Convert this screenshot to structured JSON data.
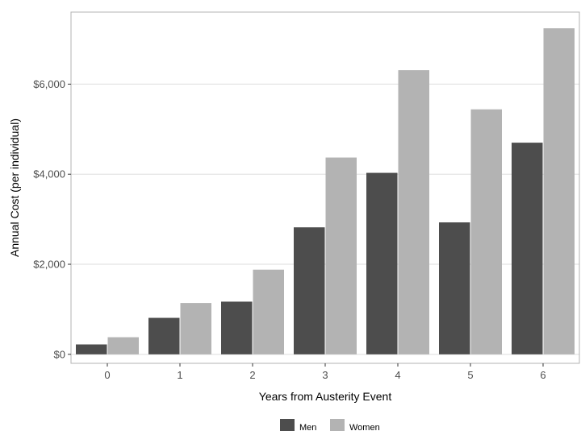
{
  "chart_data": {
    "type": "bar",
    "categories": [
      "0",
      "1",
      "2",
      "3",
      "4",
      "5",
      "6"
    ],
    "series": [
      {
        "name": "Men",
        "values": [
          220,
          810,
          1170,
          2820,
          4030,
          2930,
          4700
        ],
        "color": "#4d4d4d"
      },
      {
        "name": "Women",
        "values": [
          380,
          1140,
          1880,
          4370,
          6310,
          5440,
          7240
        ],
        "color": "#b3b3b3"
      }
    ],
    "xlabel": "Years from Austerity Event",
    "ylabel": "Annual Cost (per individual)",
    "ylim": [
      -200,
      7600
    ],
    "yticks": [
      0,
      2000,
      4000,
      6000
    ],
    "ytick_labels": [
      "$0",
      "$2,000",
      "$4,000",
      "$6,000"
    ],
    "grid": "horizontal",
    "legend_position": "bottom",
    "grid_color": "#dedede",
    "border_color": "#b3b3b3"
  }
}
